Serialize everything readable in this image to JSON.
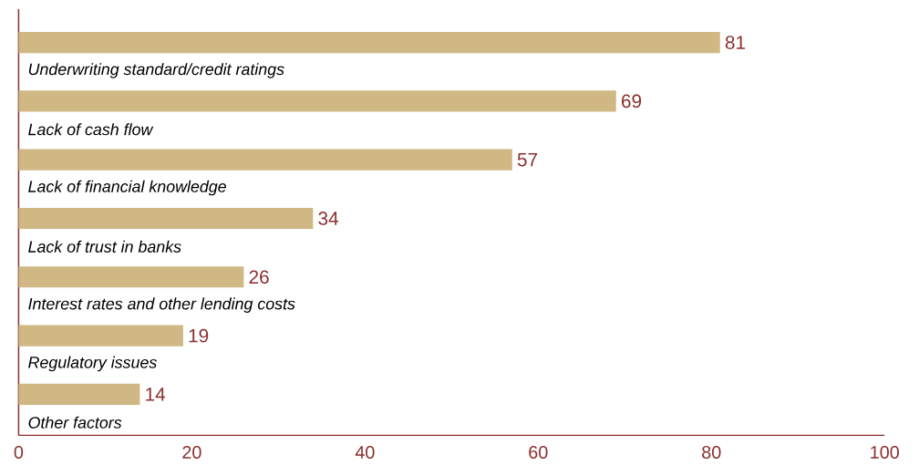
{
  "chart_data": {
    "type": "bar",
    "orientation": "horizontal",
    "categories": [
      "Underwriting standard/credit ratings",
      "Lack of cash flow",
      "Lack of financial knowledge",
      "Lack of trust in banks",
      "Interest rates and other lending costs",
      "Regulatory issues",
      "Other factors"
    ],
    "values": [
      81,
      69,
      57,
      34,
      26,
      19,
      14
    ],
    "color": "#cfb883",
    "data_labels": true,
    "xlim": [
      0,
      100
    ],
    "xticks": [
      0,
      20,
      40,
      60,
      80,
      100
    ]
  }
}
